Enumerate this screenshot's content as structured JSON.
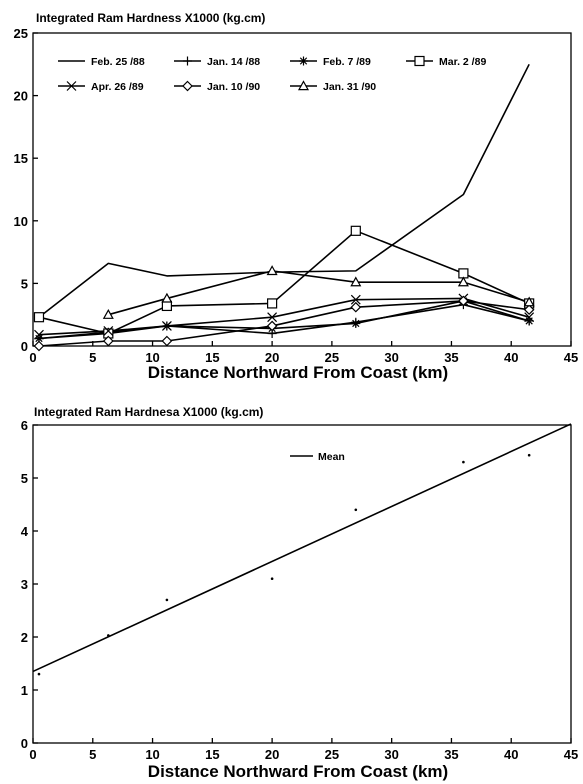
{
  "chart_data": [
    {
      "type": "line",
      "title": "Integrated Ram Hardness X1000 (kg.cm)",
      "xlabel": "Distance Northward From Coast (km)",
      "ylabel": "",
      "xlim": [
        0,
        45
      ],
      "ylim": [
        0,
        25
      ],
      "xticks": [
        0,
        5,
        10,
        15,
        20,
        25,
        30,
        35,
        40,
        45
      ],
      "yticks": [
        0,
        5,
        10,
        15,
        20,
        25
      ],
      "legend_position": "top",
      "series": [
        {
          "name": "Feb. 25 /88",
          "marker": "none",
          "x": [
            0.5,
            6.3,
            11.2,
            20,
            27,
            36,
            41.5
          ],
          "y": [
            2.3,
            6.6,
            5.6,
            5.9,
            6.0,
            12.1,
            22.5
          ]
        },
        {
          "name": "Jan. 14 /88",
          "marker": "plus",
          "x": [
            0.5,
            6.3,
            11.2,
            20,
            27,
            36,
            41.5
          ],
          "y": [
            0.6,
            1.1,
            1.6,
            1.0,
            1.9,
            3.3,
            2.0
          ]
        },
        {
          "name": "Feb. 7 /89",
          "marker": "star",
          "x": [
            0.5,
            6.3,
            11.2,
            20,
            27,
            36,
            41.5
          ],
          "y": [
            0.6,
            1.0,
            1.6,
            1.4,
            1.8,
            3.6,
            2.0
          ]
        },
        {
          "name": "Mar. 2 /89",
          "marker": "square",
          "x": [
            0.5,
            6.3,
            11.2,
            20,
            27,
            36,
            41.5
          ],
          "y": [
            2.3,
            1.0,
            3.2,
            3.4,
            9.2,
            5.8,
            3.4
          ]
        },
        {
          "name": "Apr. 26 /89",
          "marker": "x",
          "x": [
            0.5,
            6.3,
            11.2,
            20,
            27,
            36,
            41.5
          ],
          "y": [
            0.9,
            1.2,
            1.6,
            2.3,
            3.7,
            3.8,
            2.3
          ]
        },
        {
          "name": "Jan. 10 /90",
          "marker": "diamond",
          "x": [
            0.5,
            6.3,
            11.2,
            20,
            27,
            36,
            41.5
          ],
          "y": [
            0.0,
            0.4,
            0.4,
            1.6,
            3.1,
            3.6,
            2.9
          ]
        },
        {
          "name": "Jan. 31 /90",
          "marker": "triangle",
          "x": [
            6.3,
            11.2,
            20,
            27,
            36,
            41.5
          ],
          "y": [
            2.5,
            3.8,
            6.0,
            5.1,
            5.1,
            3.5
          ]
        }
      ]
    },
    {
      "type": "scatter",
      "title": "Integrated Ram Hardnesa X1000 (kg.cm)",
      "xlabel": "Distance Northward From Coast (km)",
      "ylabel": "",
      "xlim": [
        0,
        45
      ],
      "ylim": [
        0,
        6
      ],
      "xticks": [
        0,
        5,
        10,
        15,
        20,
        25,
        30,
        35,
        40,
        45
      ],
      "yticks": [
        0,
        1,
        2,
        3,
        4,
        5,
        6
      ],
      "legend_position": "top-center",
      "series": [
        {
          "name": "Mean",
          "marker": "dot",
          "x": [
            0.5,
            6.3,
            11.2,
            20,
            27,
            36,
            41.5
          ],
          "y": [
            1.3,
            2.03,
            2.7,
            3.1,
            4.4,
            5.3,
            5.43
          ]
        }
      ],
      "fit_line": {
        "x": [
          0,
          45
        ],
        "y": [
          1.35,
          6.02
        ]
      }
    }
  ]
}
